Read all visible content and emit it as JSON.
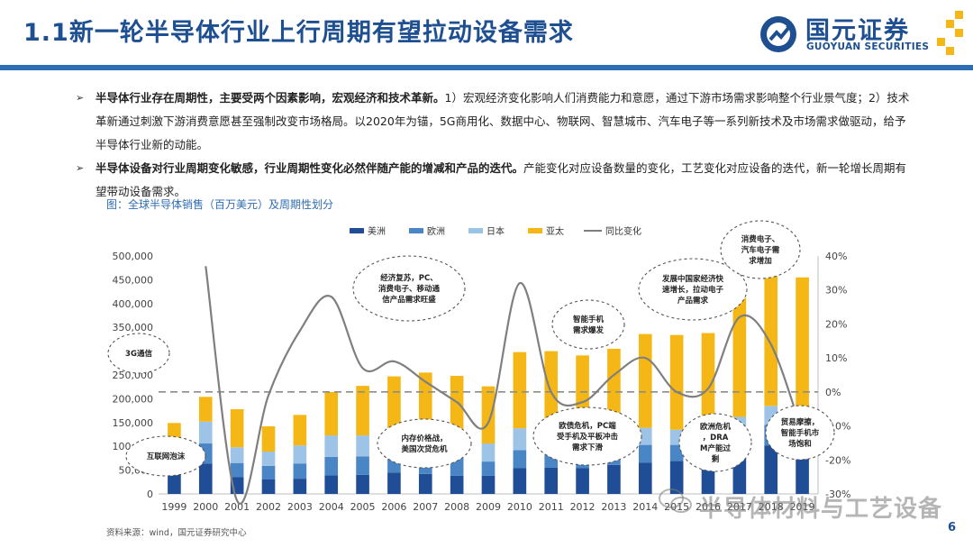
{
  "header": {
    "title": "1.1新一轮半导体行业上行周期有望拉动设备需求",
    "logo_cn": "国元证券",
    "logo_en": "GUOYUAN SECURITIES"
  },
  "bullets": [
    {
      "bold": "半导体行业存在周期性，主要受两个因素影响，宏观经济和技术革新。",
      "text": "1）宏观经济变化影响人们消费能力和意愿，通过下游市场需求影响整个行业景气度；2）技术革新通过刺激下游消费意愿甚至强制改变市场格局。以2020年为锚，5G商用化、数据中心、物联网、智慧城市、汽车电子等一系列新技术及市场需求做驱动，给予半导体行业新的动能。"
    },
    {
      "bold": "半导体设备对行业周期变化敏感，行业周期性变化必然伴随产能的增减和产品的迭代。",
      "text": "产能变化对应设备数量的变化，工艺变化对应设备的迭代，新一轮增长周期有望带动设备需求。"
    }
  ],
  "figure_caption": "图：全球半导体销售（百万美元）及周期性划分",
  "source": "资料来源：wind，国元证券研究中心",
  "page_number": "6",
  "watermark": "半导体材料与工艺设备",
  "colors": {
    "americas": "#1f4e96",
    "europe": "#4a86c5",
    "japan": "#9dc3e6",
    "asia_pacific": "#f5b715",
    "yoy": "#7f7f7f",
    "title": "#1d4f91"
  },
  "chart_data": {
    "type": "bar",
    "stacked": true,
    "categories": [
      "1999",
      "2000",
      "2001",
      "2002",
      "2003",
      "2004",
      "2005",
      "2006",
      "2007",
      "2008",
      "2009",
      "2010",
      "2011",
      "2012",
      "2013",
      "2014",
      "2015",
      "2016",
      "2017",
      "2018",
      "2019"
    ],
    "series": [
      {
        "name": "美洲",
        "values": [
          46000,
          64000,
          35000,
          31000,
          32000,
          39000,
          40000,
          45000,
          42000,
          38000,
          38000,
          54000,
          55000,
          54000,
          61000,
          66000,
          69000,
          66000,
          88000,
          102000,
          78000
        ]
      },
      {
        "name": "欧洲",
        "values": [
          25000,
          42000,
          30000,
          28000,
          32000,
          39000,
          39000,
          40000,
          41000,
          38000,
          30000,
          38000,
          37000,
          33000,
          35000,
          37000,
          34000,
          33000,
          38000,
          43000,
          40000
        ]
      },
      {
        "name": "日本",
        "values": [
          34000,
          46000,
          33000,
          30000,
          38000,
          45000,
          44000,
          44000,
          48000,
          48000,
          38000,
          46000,
          43000,
          41000,
          35000,
          36000,
          32000,
          32000,
          36000,
          40000,
          36000
        ]
      },
      {
        "name": "亚太",
        "values": [
          44000,
          52000,
          80000,
          53000,
          64000,
          91000,
          104000,
          118000,
          124000,
          124000,
          120000,
          160000,
          165000,
          163000,
          174000,
          197000,
          199000,
          207000,
          250000,
          284000,
          301000
        ]
      }
    ],
    "yoy_series": {
      "name": "同比变化",
      "values": [
        null,
        37,
        -32,
        -1,
        18,
        28,
        7,
        9,
        3,
        -3,
        -9,
        32,
        0,
        -3,
        5,
        10,
        0,
        1,
        22,
        14,
        -12
      ]
    },
    "legend": [
      "美洲",
      "欧洲",
      "日本",
      "亚太",
      "同比变化"
    ],
    "y_left": {
      "min": 0,
      "max": 500000,
      "ticks": [
        "0",
        "50,000",
        "100,000",
        "150,000",
        "200,000",
        "250,000",
        "300,000",
        "350,000",
        "400,000",
        "450,000",
        "500,000"
      ]
    },
    "y_right": {
      "min": -30,
      "max": 40,
      "ticks": [
        "-30%",
        "-20%",
        "-10%",
        "0%",
        "10%",
        "20%",
        "30%",
        "40%"
      ]
    },
    "zero_line": 0,
    "annotations": [
      {
        "text": "3G通信"
      },
      {
        "text": "互联网泡沫"
      },
      {
        "text": "经济复苏，PC、消费电子、移动通信产品需求旺盛"
      },
      {
        "text": "内存价格战，美国次贷危机"
      },
      {
        "text": "智能手机需求爆发"
      },
      {
        "text": "欧债危机，PC端受手机及平板冲击需求下滑"
      },
      {
        "text": "发展中国家经济快速增长，拉动电子产品需求"
      },
      {
        "text": "欧洲危机，DRAM产能过剩"
      },
      {
        "text": "消费电子、汽车电子需求增加"
      },
      {
        "text": "贸易摩擦，智能手机市场饱和"
      }
    ],
    "legend_position": "top-center"
  }
}
